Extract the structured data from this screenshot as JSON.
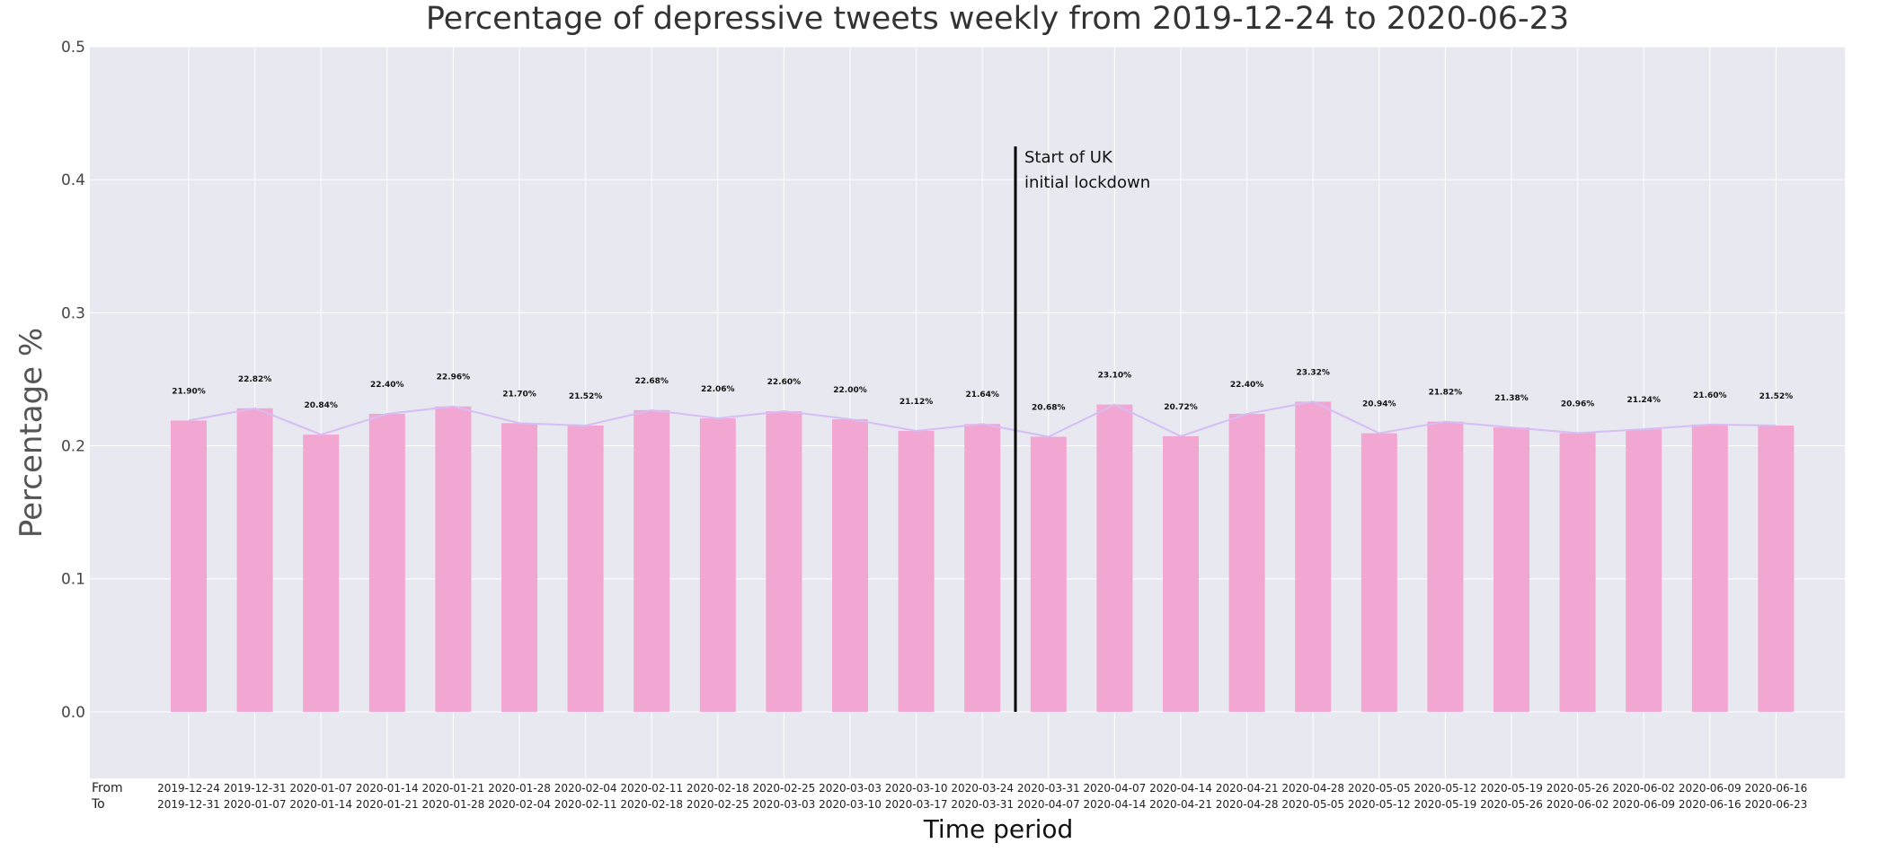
{
  "chart_data": {
    "type": "bar",
    "title": "Percentage of depressive tweets weekly from 2019-12-24 to 2020-06-23",
    "xlabel": "Time period",
    "ylabel": "Percentage %",
    "ylim": [
      -0.05,
      0.5
    ],
    "yticks": [
      "0.0",
      "0.1",
      "0.2",
      "0.3",
      "0.4",
      "0.5"
    ],
    "row_labels": {
      "from": "From",
      "to": "To"
    },
    "grid": true,
    "colors": {
      "bar": "#f1a7d2",
      "line": "#d6bdf5",
      "background": "#e8e8f0",
      "grid": "#ffffff",
      "annotation_line": "#000000"
    },
    "categories_from": [
      "2019-12-24",
      "2019-12-31",
      "2020-01-07",
      "2020-01-14",
      "2020-01-21",
      "2020-01-28",
      "2020-02-04",
      "2020-02-11",
      "2020-02-18",
      "2020-02-25",
      "2020-03-03",
      "2020-03-10",
      "2020-03-24",
      "2020-03-31",
      "2020-04-07",
      "2020-04-14",
      "2020-04-21",
      "2020-04-28",
      "2020-05-05",
      "2020-05-12",
      "2020-05-19",
      "2020-05-26",
      "2020-06-02",
      "2020-06-09",
      "2020-06-16"
    ],
    "categories_to": [
      "2019-12-31",
      "2020-01-07",
      "2020-01-14",
      "2020-01-21",
      "2020-01-28",
      "2020-02-04",
      "2020-02-11",
      "2020-02-18",
      "2020-02-25",
      "2020-03-03",
      "2020-03-10",
      "2020-03-17",
      "2020-03-31",
      "2020-04-07",
      "2020-04-14",
      "2020-04-21",
      "2020-04-28",
      "2020-05-05",
      "2020-05-12",
      "2020-05-19",
      "2020-05-26",
      "2020-06-02",
      "2020-06-09",
      "2020-06-16",
      "2020-06-23"
    ],
    "values": [
      0.219,
      0.2282,
      0.2084,
      0.224,
      0.2296,
      0.217,
      0.2152,
      0.2268,
      0.2206,
      0.226,
      0.22,
      0.2112,
      0.2164,
      0.2068,
      0.231,
      0.2072,
      0.224,
      0.2332,
      0.2094,
      0.2182,
      0.2138,
      0.2096,
      0.2124,
      0.216,
      0.2152
    ],
    "data_labels": [
      "21.90%",
      "22.82%",
      "20.84%",
      "22.40%",
      "22.96%",
      "21.70%",
      "21.52%",
      "22.68%",
      "22.06%",
      "22.60%",
      "22.00%",
      "21.12%",
      "21.64%",
      "20.68%",
      "23.10%",
      "20.72%",
      "22.40%",
      "23.32%",
      "20.94%",
      "21.82%",
      "21.38%",
      "20.96%",
      "21.24%",
      "21.60%",
      "21.52%"
    ],
    "annotation": {
      "lines": [
        "Start of UK",
        "initial lockdown"
      ],
      "between_categories": [
        "2020-03-24",
        "2020-03-31"
      ],
      "y_range": [
        0.0,
        0.425
      ]
    }
  }
}
